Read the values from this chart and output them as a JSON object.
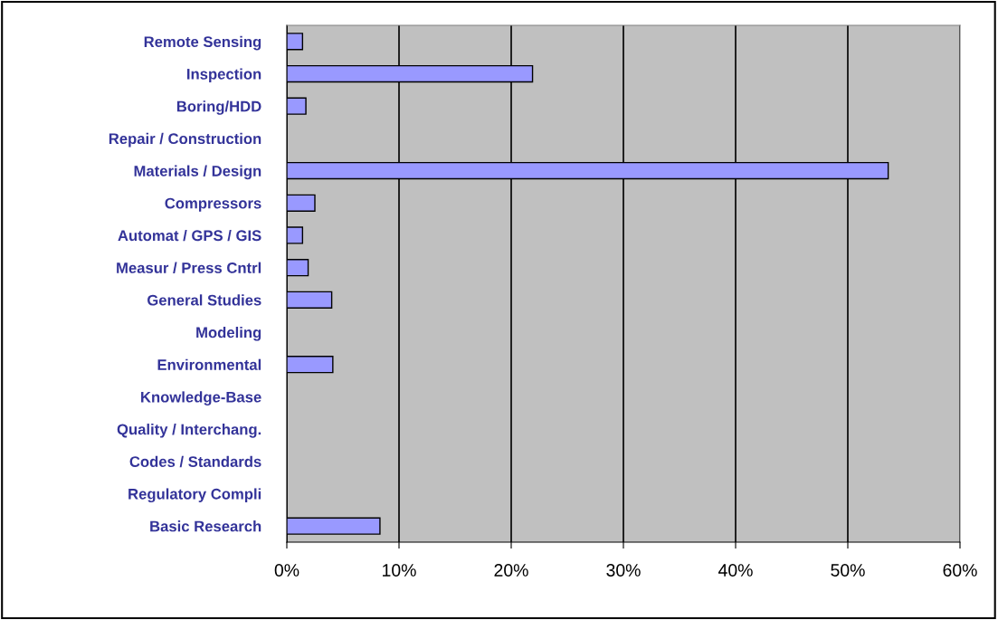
{
  "chart_data": {
    "type": "bar",
    "orientation": "horizontal",
    "categories": [
      "Remote Sensing",
      "Inspection",
      "Boring/HDD",
      "Repair / Construction",
      "Materials / Design",
      "Compressors",
      "Automat / GPS / GIS",
      "Measur / Press Cntrl",
      "General Studies",
      "Modeling",
      "Environmental",
      "Knowledge-Base",
      "Quality / Interchang.",
      "Codes / Standards",
      "Regulatory Compli",
      "Basic Research"
    ],
    "values": [
      1.4,
      21.9,
      1.7,
      null,
      53.6,
      2.5,
      1.4,
      1.9,
      4.0,
      null,
      4.1,
      null,
      null,
      null,
      null,
      8.3
    ],
    "color": "#9999ff",
    "xlim": [
      0,
      60
    ],
    "xticks": [
      {
        "value": 0,
        "label": "0%"
      },
      {
        "value": 10,
        "label": "10%"
      },
      {
        "value": 20,
        "label": "20%"
      },
      {
        "value": 30,
        "label": "30%"
      },
      {
        "value": 40,
        "label": "40%"
      },
      {
        "value": 50,
        "label": "50%"
      },
      {
        "value": 60,
        "label": "60%"
      }
    ],
    "grid": "x",
    "legend": false
  }
}
